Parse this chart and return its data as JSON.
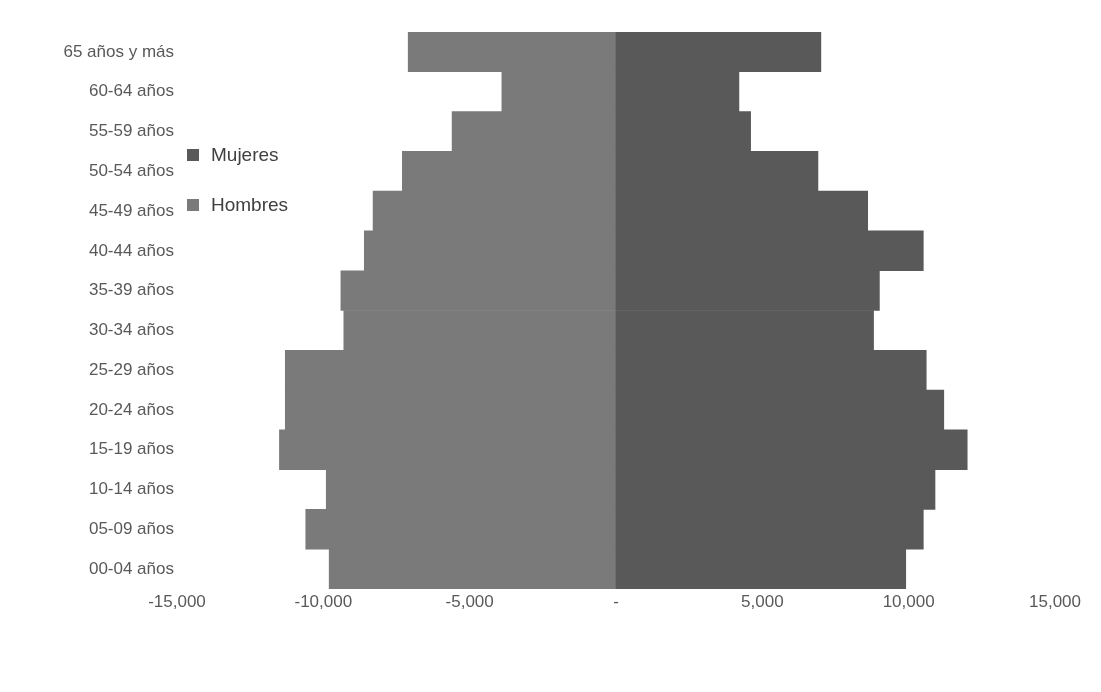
{
  "chart_data": {
    "type": "bar",
    "orientation": "horizontal",
    "stacked": true,
    "legend": "top left",
    "grid": false,
    "categories": [
      "65 años y más",
      "60-64 años",
      "55-59 años",
      "50-54 años",
      "45-49 años",
      "40-44 años",
      "35-39 años",
      "30-34 años",
      "25-29 años",
      "20-24 años",
      "15-19 años",
      "10-14 años",
      "05-09 años",
      "00-04 años"
    ],
    "series": [
      {
        "name": "Mujeres",
        "color": "#595959",
        "values": [
          7000,
          4200,
          4600,
          6900,
          8600,
          10500,
          9000,
          8800,
          10600,
          11200,
          12000,
          10900,
          10500,
          9900
        ]
      },
      {
        "name": "Hombres",
        "color": "#7a7a7a",
        "values": [
          -7100,
          -3900,
          -5600,
          -7300,
          -8300,
          -8600,
          -9400,
          -9300,
          -11300,
          -11300,
          -11500,
          -9900,
          -10600,
          -9800
        ]
      }
    ],
    "xlim": [
      -15000,
      15000
    ],
    "xticks": [
      {
        "value": -15000,
        "label": "-15,000"
      },
      {
        "value": -10000,
        "label": "-10,000"
      },
      {
        "value": -5000,
        "label": "-5,000"
      },
      {
        "value": 0,
        "label": "-"
      },
      {
        "value": 5000,
        "label": "5,000"
      },
      {
        "value": 10000,
        "label": "10,000"
      },
      {
        "value": 15000,
        "label": "15,000"
      }
    ]
  }
}
